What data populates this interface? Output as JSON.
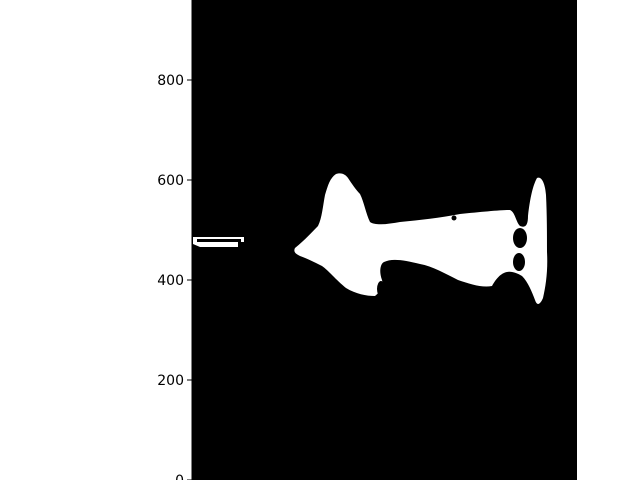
{
  "chart_data": {
    "type": "heatmap",
    "title": "",
    "xlabel": "",
    "ylabel": "",
    "ylim": [
      0,
      960
    ],
    "y_ticks": [
      {
        "value": 0,
        "label": "0"
      },
      {
        "value": 200,
        "label": "200"
      },
      {
        "value": 400,
        "label": "400"
      },
      {
        "value": 600,
        "label": "600"
      },
      {
        "value": 800,
        "label": "800"
      }
    ],
    "x_axis_visible": false,
    "grid": false,
    "colormap": {
      "background": "#000000",
      "foreground": "#ffffff"
    },
    "description_of_mask": "binary segmentation mask: white region on black field",
    "mask_regions": [
      {
        "name": "mask-blob-main",
        "points_data_units": [
          [
            -240,
            468
          ],
          [
            -220,
            465
          ],
          [
            -200,
            462
          ],
          [
            -180,
            454
          ],
          [
            -160,
            443
          ],
          [
            -140,
            432
          ],
          [
            -120,
            424
          ],
          [
            -100,
            416
          ],
          [
            -80,
            404
          ],
          [
            -60,
            394
          ],
          [
            -40,
            386
          ],
          [
            -20,
            378
          ],
          [
            0,
            372
          ],
          [
            12,
            366
          ],
          [
            18,
            370
          ],
          [
            20,
            380
          ],
          [
            15,
            392
          ],
          [
            18,
            404
          ],
          [
            30,
            412
          ],
          [
            44,
            416
          ],
          [
            70,
            408
          ],
          [
            100,
            404
          ],
          [
            140,
            400
          ],
          [
            180,
            390
          ],
          [
            220,
            380
          ],
          [
            240,
            376
          ],
          [
            260,
            380
          ],
          [
            280,
            394
          ],
          [
            300,
            410
          ],
          [
            316,
            424
          ],
          [
            324,
            438
          ],
          [
            324,
            456
          ],
          [
            330,
            470
          ],
          [
            340,
            476
          ],
          [
            360,
            478
          ],
          [
            380,
            486
          ],
          [
            400,
            500
          ],
          [
            420,
            510
          ],
          [
            440,
            520
          ],
          [
            460,
            524
          ],
          [
            480,
            532
          ],
          [
            500,
            540
          ],
          [
            520,
            542
          ],
          [
            540,
            548
          ],
          [
            560,
            540
          ],
          [
            580,
            532
          ],
          [
            600,
            524
          ],
          [
            620,
            520
          ],
          [
            640,
            510
          ],
          [
            650,
            508
          ],
          [
            660,
            502
          ],
          [
            668,
            500
          ],
          [
            672,
            480
          ],
          [
            675,
            470
          ],
          [
            678,
            460
          ],
          [
            680,
            455
          ],
          [
            684,
            458
          ],
          [
            688,
            470
          ],
          [
            690,
            485
          ],
          [
            692,
            500
          ],
          [
            695,
            515
          ],
          [
            700,
            523
          ],
          [
            705,
            525
          ],
          [
            705,
            515
          ],
          [
            700,
            505
          ],
          [
            695,
            495
          ],
          [
            690,
            478
          ],
          [
            686,
            462
          ],
          [
            684,
            450
          ],
          [
            682,
            444
          ],
          [
            670,
            442
          ],
          [
            650,
            440
          ],
          [
            640,
            438
          ],
          [
            620,
            432
          ],
          [
            600,
            422
          ],
          [
            580,
            410
          ],
          [
            560,
            400
          ],
          [
            540,
            395
          ],
          [
            520,
            392
          ],
          [
            500,
            394
          ],
          [
            480,
            394
          ],
          [
            460,
            396
          ],
          [
            440,
            398
          ],
          [
            420,
            400
          ],
          [
            400,
            404
          ],
          [
            380,
            412
          ],
          [
            360,
            420
          ],
          [
            340,
            428
          ],
          [
            320,
            436
          ],
          [
            300,
            440
          ],
          [
            280,
            444
          ],
          [
            260,
            448
          ],
          [
            240,
            452
          ],
          [
            220,
            456
          ],
          [
            200,
            460
          ],
          [
            180,
            462
          ],
          [
            160,
            466
          ],
          [
            140,
            472
          ],
          [
            120,
            476
          ],
          [
            100,
            478
          ],
          [
            80,
            480
          ],
          [
            60,
            482
          ],
          [
            40,
            486
          ],
          [
            20,
            494
          ],
          [
            0,
            500
          ],
          [
            -20,
            510
          ],
          [
            -40,
            520
          ],
          [
            -60,
            528
          ],
          [
            -80,
            536
          ],
          [
            -100,
            540
          ],
          [
            -120,
            538
          ],
          [
            -140,
            534
          ],
          [
            -160,
            520
          ],
          [
            -180,
            508
          ],
          [
            -200,
            496
          ],
          [
            -220,
            484
          ],
          [
            -240,
            476
          ]
        ]
      }
    ]
  }
}
